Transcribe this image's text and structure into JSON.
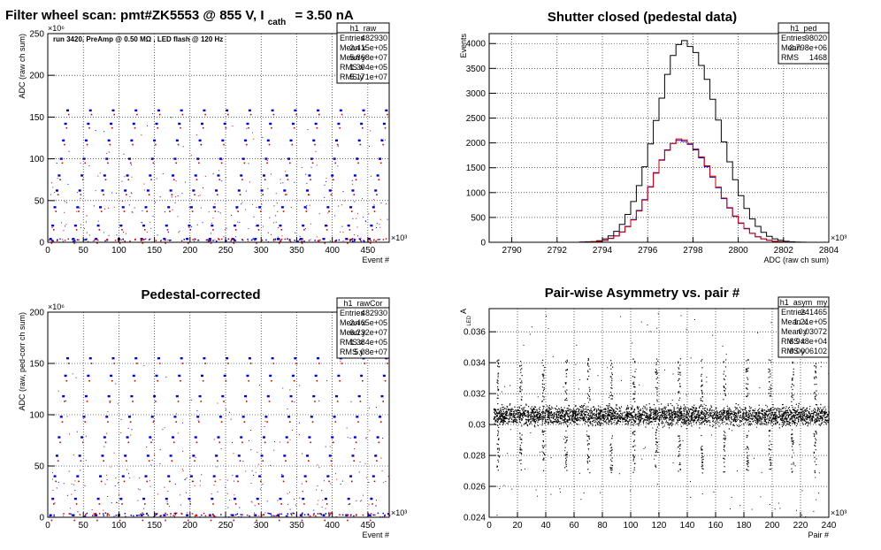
{
  "chart_data": [
    {
      "id": "raw",
      "type": "scatter",
      "title_parts": {
        "main": "Filter wheel scan: pmt#ZK5553 @   855 V, I",
        "sub": "cath",
        "tail": "= 3.50 nA"
      },
      "annotation": "run 3420, PreAmp @ 0.50 MΩ , LED flash @  120 Hz",
      "xlabel": "Event #",
      "ylabel": "ADC (raw ch sum)",
      "x_exponent": "×10³",
      "y_exponent": "×10⁶",
      "xlim": [
        0,
        480
      ],
      "ylim": [
        0,
        250
      ],
      "xticks": [
        "0",
        "50",
        "100",
        "150",
        "200",
        "250",
        "300",
        "350",
        "400",
        "450"
      ],
      "yticks": [
        "0",
        "50",
        "100",
        "150",
        "200",
        "250"
      ],
      "grid": true,
      "levels": [
        4,
        20,
        42,
        62,
        80,
        100,
        122,
        142,
        158
      ],
      "series": [
        {
          "color": "#0000cc",
          "period": 32
        },
        {
          "color": "#cc0000",
          "period": 32
        }
      ],
      "stats": {
        "name": "h1_raw",
        "rows": [
          {
            "label": "Entries",
            "value": "482930"
          },
          {
            "label": "Mean x",
            "value": "2.415e+05"
          },
          {
            "label": "Mean y",
            "value": "5.868e+07"
          },
          {
            "label": "RMS x",
            "value": "1.394e+05"
          },
          {
            "label": "RMS y",
            "value": "5.171e+07"
          }
        ]
      }
    },
    {
      "id": "ped",
      "type": "line",
      "title": "Shutter closed (pedestal data)",
      "xlabel": "ADC (raw ch sum)",
      "ylabel": "Events",
      "x_exponent": "×10³",
      "xlim": [
        2789,
        2804
      ],
      "ylim": [
        0,
        4200
      ],
      "xticks": [
        "2790",
        "2792",
        "2794",
        "2796",
        "2798",
        "2800",
        "2802",
        "2804"
      ],
      "yticks": [
        "0",
        "500",
        "1000",
        "1500",
        "2000",
        "2500",
        "3000",
        "3500",
        "4000"
      ],
      "grid": true,
      "x": [
        2789.0,
        2789.25,
        2789.5,
        2789.75,
        2790.0,
        2790.25,
        2790.5,
        2790.75,
        2791.0,
        2791.25,
        2791.5,
        2791.75,
        2792.0,
        2792.25,
        2792.5,
        2792.75,
        2793.0,
        2793.25,
        2793.5,
        2793.75,
        2794.0,
        2794.25,
        2794.5,
        2794.75,
        2795.0,
        2795.25,
        2795.5,
        2795.75,
        2796.0,
        2796.25,
        2796.5,
        2796.75,
        2797.0,
        2797.25,
        2797.5,
        2797.75,
        2798.0,
        2798.25,
        2798.5,
        2798.75,
        2799.0,
        2799.25,
        2799.5,
        2799.75,
        2800.0,
        2800.25,
        2800.5,
        2800.75,
        2801.0,
        2801.25,
        2801.5,
        2801.75,
        2802.0,
        2802.25,
        2802.5,
        2802.75,
        2803.0,
        2803.25,
        2803.5,
        2803.75
      ],
      "series": [
        {
          "color": "#000000",
          "values": [
            0,
            0,
            0,
            0,
            0,
            0,
            0,
            0,
            0,
            0,
            0,
            0,
            0,
            0,
            0,
            0,
            5,
            10,
            15,
            30,
            70,
            130,
            220,
            360,
            560,
            820,
            1140,
            1520,
            1980,
            2450,
            2900,
            3380,
            3760,
            3980,
            4060,
            3940,
            3820,
            3560,
            3280,
            2880,
            2460,
            2020,
            1620,
            1260,
            940,
            680,
            470,
            320,
            200,
            120,
            70,
            40,
            20,
            10,
            5,
            2,
            0,
            0,
            0,
            0
          ]
        },
        {
          "color": "#0000cc",
          "values": [
            0,
            0,
            0,
            0,
            0,
            0,
            0,
            0,
            0,
            0,
            0,
            0,
            0,
            0,
            0,
            0,
            2,
            5,
            10,
            20,
            40,
            80,
            130,
            210,
            320,
            460,
            640,
            860,
            1120,
            1400,
            1660,
            1860,
            1990,
            2050,
            2030,
            1970,
            1860,
            1700,
            1520,
            1310,
            1100,
            880,
            690,
            520,
            380,
            270,
            180,
            110,
            70,
            40,
            20,
            10,
            5,
            2,
            0,
            0,
            0,
            0,
            0,
            0
          ]
        },
        {
          "color": "#cc0000",
          "values": [
            0,
            0,
            0,
            0,
            0,
            0,
            0,
            0,
            0,
            0,
            0,
            0,
            0,
            0,
            0,
            0,
            2,
            5,
            10,
            20,
            38,
            76,
            126,
            204,
            314,
            450,
            630,
            850,
            1110,
            1390,
            1650,
            1850,
            1990,
            2080,
            2060,
            1990,
            1880,
            1720,
            1540,
            1330,
            1110,
            890,
            700,
            530,
            390,
            280,
            180,
            110,
            70,
            40,
            20,
            10,
            5,
            2,
            0,
            0,
            0,
            0,
            0,
            0
          ]
        }
      ],
      "stats": {
        "name": "h1_ped",
        "rows": [
          {
            "label": "Entries",
            "value": "98020"
          },
          {
            "label": "Mean",
            "value": "2.798e+06"
          },
          {
            "label": "RMS",
            "value": "1468"
          }
        ]
      }
    },
    {
      "id": "rawcor",
      "type": "scatter",
      "title": "Pedestal-corrected",
      "xlabel": "Event #",
      "ylabel": "ADC (raw, ped-corr ch sum)",
      "x_exponent": "×10³",
      "y_exponent": "×10⁶",
      "xlim": [
        0,
        480
      ],
      "ylim": [
        0,
        200
      ],
      "xticks": [
        "0",
        "50",
        "100",
        "150",
        "200",
        "250",
        "300",
        "350",
        "400",
        "450"
      ],
      "yticks": [
        "0",
        "50",
        "100",
        "150",
        "200"
      ],
      "grid": true,
      "levels": [
        2,
        18,
        40,
        60,
        78,
        98,
        118,
        138,
        155
      ],
      "series": [
        {
          "color": "#0000cc",
          "period": 32
        },
        {
          "color": "#cc0000",
          "period": 32
        }
      ],
      "stats": {
        "name": "h1_rawCor",
        "rows": [
          {
            "label": "Entries",
            "value": "482930"
          },
          {
            "label": "Mean x",
            "value": "2.465e+05"
          },
          {
            "label": "Mean y",
            "value": "6.232e+07"
          },
          {
            "label": "RMS x",
            "value": "1.384e+05"
          },
          {
            "label": "RMS y",
            "value": "5.08e+07"
          }
        ]
      }
    },
    {
      "id": "asym",
      "type": "scatter",
      "title": "Pair-wise Asymmetry vs. pair #",
      "xlabel": "Pair #",
      "ylabel": "A",
      "ylabel_sub": "LED",
      "x_exponent": "×10³",
      "xlim": [
        0,
        240
      ],
      "ylim": [
        0.024,
        0.0375
      ],
      "xticks": [
        "0",
        "20",
        "40",
        "60",
        "80",
        "100",
        "120",
        "140",
        "160",
        "180",
        "200",
        "220",
        "240"
      ],
      "yticks": [
        "0.024",
        "0.026",
        "0.028",
        "0.03",
        "0.032",
        "0.034",
        "0.036"
      ],
      "grid": true,
      "band_center": 0.0306,
      "band_halfwidth": 0.0009,
      "spike_period": 16,
      "series": [
        {
          "color": "#000000"
        }
      ],
      "stats": {
        "name": "h1_asym_my",
        "rows": [
          {
            "label": "Entries",
            "value": "241465"
          },
          {
            "label": "Mean x",
            "value": "1.21e+05"
          },
          {
            "label": "Mean y",
            "value": "0.03072"
          },
          {
            "label": "RMS x",
            "value": "6.948e+04"
          },
          {
            "label": "RMS y",
            "value": "0.0006102"
          }
        ]
      }
    }
  ]
}
